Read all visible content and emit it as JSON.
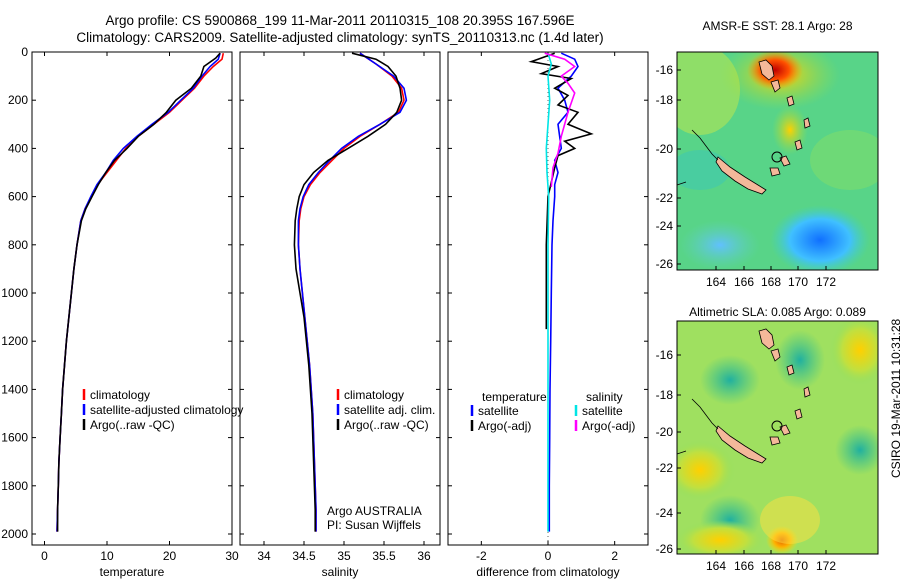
{
  "header": {
    "title_line1": "Argo profile: CS 5900868_199 11-Mar-2011 20110315_108 20.395S 167.596E",
    "title_line2": "Climatology: CARS2009. Satellite-adjusted climatology: synTS_20110313.nc (1.4d later)"
  },
  "footer": {
    "credit": "CSIRO 19-Mar-2011 10:31:28"
  },
  "colors": {
    "climatology": "#ff0000",
    "satellite": "#0000ff",
    "argo": "#000000",
    "sal_satellite": "#00e5e5",
    "sal_argo": "#ff00ff"
  },
  "chart_data": [
    {
      "type": "line",
      "xlabel": "temperature",
      "ylabel": "",
      "xlim": [
        -2,
        30
      ],
      "ylim": [
        2000,
        0
      ],
      "x_ticks": [
        "0",
        "10",
        "20",
        "30"
      ],
      "y_ticks": [
        "0",
        "200",
        "400",
        "600",
        "800",
        "1000",
        "1200",
        "1400",
        "1600",
        "1800",
        "2000"
      ],
      "legend": [
        "climatology",
        "satellite-adjusted climatology",
        "Argo(..raw -QC)"
      ],
      "series": [
        {
          "name": "climatology",
          "points": [
            [
              28.6,
              5
            ],
            [
              28.4,
              30
            ],
            [
              27.0,
              60
            ],
            [
              25.5,
              100
            ],
            [
              24.0,
              150
            ],
            [
              22.0,
              200
            ],
            [
              20.0,
              250
            ],
            [
              17.5,
              300
            ],
            [
              15.0,
              350
            ],
            [
              13.0,
              400
            ],
            [
              11.5,
              450
            ],
            [
              10.0,
              500
            ],
            [
              8.5,
              550
            ],
            [
              7.5,
              600
            ],
            [
              6.5,
              650
            ],
            [
              5.8,
              700
            ],
            [
              5.2,
              800
            ],
            [
              4.7,
              900
            ],
            [
              4.3,
              1000
            ],
            [
              3.9,
              1100
            ],
            [
              3.5,
              1200
            ],
            [
              3.2,
              1300
            ],
            [
              2.9,
              1400
            ],
            [
              2.7,
              1500
            ],
            [
              2.5,
              1600
            ],
            [
              2.3,
              1700
            ],
            [
              2.2,
              1800
            ],
            [
              2.1,
              1900
            ],
            [
              2.0,
              1990
            ]
          ]
        },
        {
          "name": "satellite-adjusted climatology",
          "points": [
            [
              28.1,
              5
            ],
            [
              27.8,
              30
            ],
            [
              26.5,
              60
            ],
            [
              25.2,
              100
            ],
            [
              23.8,
              150
            ],
            [
              21.8,
              200
            ],
            [
              19.8,
              250
            ],
            [
              17.2,
              300
            ],
            [
              14.8,
              350
            ],
            [
              12.6,
              400
            ],
            [
              11.0,
              450
            ],
            [
              9.8,
              500
            ],
            [
              8.4,
              550
            ],
            [
              7.4,
              600
            ],
            [
              6.5,
              650
            ],
            [
              5.8,
              700
            ],
            [
              5.2,
              800
            ],
            [
              4.7,
              900
            ],
            [
              4.3,
              1000
            ],
            [
              3.9,
              1100
            ],
            [
              3.5,
              1200
            ],
            [
              3.2,
              1300
            ],
            [
              2.9,
              1400
            ],
            [
              2.7,
              1500
            ],
            [
              2.5,
              1600
            ],
            [
              2.3,
              1700
            ],
            [
              2.2,
              1800
            ],
            [
              2.1,
              1900
            ],
            [
              2.0,
              1990
            ]
          ]
        },
        {
          "name": "Argo(..raw -QC)",
          "points": [
            [
              28.1,
              5
            ],
            [
              27.4,
              25
            ],
            [
              25.5,
              60
            ],
            [
              25.0,
              100
            ],
            [
              23.5,
              150
            ],
            [
              21.0,
              200
            ],
            [
              19.5,
              250
            ],
            [
              17.5,
              300
            ],
            [
              15.0,
              350
            ],
            [
              13.2,
              400
            ],
            [
              11.2,
              450
            ],
            [
              9.8,
              500
            ],
            [
              8.6,
              550
            ],
            [
              7.6,
              600
            ],
            [
              6.6,
              650
            ],
            [
              5.9,
              700
            ],
            [
              5.2,
              800
            ],
            [
              4.7,
              900
            ],
            [
              4.3,
              1000
            ],
            [
              3.9,
              1100
            ],
            [
              3.5,
              1200
            ],
            [
              3.2,
              1300
            ],
            [
              2.9,
              1400
            ],
            [
              2.7,
              1500
            ],
            [
              2.5,
              1600
            ],
            [
              2.3,
              1700
            ],
            [
              2.2,
              1800
            ],
            [
              2.1,
              1900
            ],
            [
              2.1,
              1990
            ]
          ]
        }
      ]
    },
    {
      "type": "line",
      "xlabel": "salinity",
      "ylabel": "",
      "xlim": [
        33.7,
        36.2
      ],
      "ylim": [
        2000,
        0
      ],
      "x_ticks": [
        "34",
        "34.5",
        "35",
        "35.5",
        "36"
      ],
      "legend": [
        "climatology",
        "satellite adj. clim.",
        "Argo(..raw -QC)"
      ],
      "annotation": [
        "Argo AUSTRALIA",
        "PI: Susan Wijffels"
      ],
      "series": [
        {
          "name": "climatology",
          "points": [
            [
              35.2,
              5
            ],
            [
              35.4,
              50
            ],
            [
              35.6,
              100
            ],
            [
              35.72,
              150
            ],
            [
              35.75,
              200
            ],
            [
              35.68,
              250
            ],
            [
              35.45,
              300
            ],
            [
              35.2,
              350
            ],
            [
              35.0,
              400
            ],
            [
              34.85,
              450
            ],
            [
              34.7,
              500
            ],
            [
              34.58,
              550
            ],
            [
              34.5,
              600
            ],
            [
              34.46,
              650
            ],
            [
              34.44,
              700
            ],
            [
              34.43,
              800
            ],
            [
              34.45,
              900
            ],
            [
              34.48,
              1000
            ],
            [
              34.51,
              1100
            ],
            [
              34.54,
              1200
            ],
            [
              34.57,
              1300
            ],
            [
              34.59,
              1400
            ],
            [
              34.61,
              1500
            ],
            [
              34.62,
              1600
            ],
            [
              34.63,
              1700
            ],
            [
              34.64,
              1800
            ],
            [
              34.65,
              1900
            ],
            [
              34.65,
              1990
            ]
          ]
        },
        {
          "name": "satellite adj. clim.",
          "points": [
            [
              35.2,
              5
            ],
            [
              35.4,
              50
            ],
            [
              35.62,
              100
            ],
            [
              35.75,
              150
            ],
            [
              35.78,
              200
            ],
            [
              35.7,
              250
            ],
            [
              35.45,
              300
            ],
            [
              35.18,
              350
            ],
            [
              34.97,
              400
            ],
            [
              34.82,
              450
            ],
            [
              34.68,
              500
            ],
            [
              34.56,
              550
            ],
            [
              34.49,
              600
            ],
            [
              34.45,
              650
            ],
            [
              34.43,
              700
            ],
            [
              34.43,
              800
            ],
            [
              34.45,
              900
            ],
            [
              34.48,
              1000
            ],
            [
              34.51,
              1100
            ],
            [
              34.54,
              1200
            ],
            [
              34.57,
              1300
            ],
            [
              34.59,
              1400
            ],
            [
              34.61,
              1500
            ],
            [
              34.62,
              1600
            ],
            [
              34.63,
              1700
            ],
            [
              34.64,
              1800
            ],
            [
              34.65,
              1900
            ],
            [
              34.65,
              1990
            ]
          ]
        },
        {
          "name": "Argo(..raw -QC)",
          "points": [
            [
              35.1,
              5
            ],
            [
              35.4,
              30
            ],
            [
              35.55,
              60
            ],
            [
              35.65,
              100
            ],
            [
              35.7,
              150
            ],
            [
              35.72,
              200
            ],
            [
              35.66,
              250
            ],
            [
              35.52,
              300
            ],
            [
              35.3,
              350
            ],
            [
              35.05,
              400
            ],
            [
              34.8,
              450
            ],
            [
              34.62,
              500
            ],
            [
              34.5,
              550
            ],
            [
              34.44,
              600
            ],
            [
              34.41,
              650
            ],
            [
              34.39,
              700
            ],
            [
              34.38,
              800
            ],
            [
              34.4,
              900
            ],
            [
              34.45,
              1000
            ],
            [
              34.5,
              1100
            ],
            [
              34.53,
              1200
            ],
            [
              34.56,
              1300
            ],
            [
              34.58,
              1400
            ],
            [
              34.6,
              1500
            ],
            [
              34.61,
              1600
            ],
            [
              34.62,
              1700
            ],
            [
              34.63,
              1800
            ],
            [
              34.64,
              1900
            ],
            [
              34.64,
              1990
            ]
          ]
        }
      ]
    },
    {
      "type": "line",
      "xlabel": "difference from climatology",
      "ylabel": "",
      "xlim": [
        -3,
        3
      ],
      "ylim": [
        2000,
        0
      ],
      "x_ticks": [
        "-2",
        "0",
        "2"
      ],
      "legend_groups": [
        {
          "title": "temperature",
          "items": [
            "satellite",
            "Argo(-adj)"
          ]
        },
        {
          "title": "salinity",
          "items": [
            "satellite",
            "Argo(-adj)"
          ]
        }
      ],
      "series": [
        {
          "name": "temperature satellite",
          "points": [
            [
              0.4,
              5
            ],
            [
              0.8,
              30
            ],
            [
              0.9,
              60
            ],
            [
              0.7,
              100
            ],
            [
              0.3,
              150
            ],
            [
              0.5,
              200
            ],
            [
              0.6,
              250
            ],
            [
              0.3,
              300
            ],
            [
              0.4,
              400
            ],
            [
              0.2,
              450
            ],
            [
              0.3,
              500
            ],
            [
              0.2,
              550
            ],
            [
              0.2,
              600
            ],
            [
              0.15,
              700
            ],
            [
              0.12,
              800
            ],
            [
              0.1,
              1000
            ],
            [
              0.08,
              1200
            ],
            [
              0.06,
              1400
            ],
            [
              0.05,
              1600
            ],
            [
              0.04,
              1800
            ],
            [
              0.04,
              1990
            ]
          ]
        },
        {
          "name": "temperature Argo(-adj)",
          "points": [
            [
              0.2,
              5
            ],
            [
              -0.3,
              30
            ],
            [
              -0.5,
              40
            ],
            [
              0.3,
              60
            ],
            [
              -0.2,
              90
            ],
            [
              0.7,
              110
            ],
            [
              0.2,
              150
            ],
            [
              0.6,
              180
            ],
            [
              0.3,
              220
            ],
            [
              0.9,
              250
            ],
            [
              0.6,
              300
            ],
            [
              1.3,
              340
            ],
            [
              0.5,
              370
            ],
            [
              0.8,
              400
            ],
            [
              0.3,
              430
            ],
            [
              0.2,
              480
            ],
            [
              0.0,
              600
            ],
            [
              -0.05,
              800
            ],
            [
              -0.05,
              1000
            ],
            [
              -0.05,
              1150
            ]
          ]
        },
        {
          "name": "salinity satellite",
          "points": [
            [
              0.0,
              5
            ],
            [
              0.1,
              50
            ],
            [
              0.0,
              100
            ],
            [
              0.05,
              200
            ],
            [
              0.0,
              300
            ],
            [
              -0.05,
              400
            ],
            [
              -0.03,
              500
            ],
            [
              0.02,
              600
            ],
            [
              0.0,
              800
            ],
            [
              0.0,
              1000
            ],
            [
              0.0,
              1200
            ],
            [
              0.0,
              1400
            ],
            [
              0.0,
              1600
            ],
            [
              0.0,
              1800
            ],
            [
              0.0,
              1990
            ]
          ]
        },
        {
          "name": "salinity Argo(-adj)",
          "points": [
            [
              -0.1,
              5
            ],
            [
              0.5,
              30
            ],
            [
              0.8,
              60
            ],
            [
              0.4,
              100
            ],
            [
              0.6,
              130
            ],
            [
              0.8,
              170
            ],
            [
              0.6,
              250
            ],
            [
              0.4,
              350
            ],
            [
              0.3,
              420
            ],
            [
              0.15,
              480
            ],
            [
              0.1,
              560
            ]
          ]
        }
      ]
    },
    {
      "type": "heatmap",
      "title": "AMSR-E SST: 28.1  Argo: 28",
      "x_ticks": [
        "164",
        "166",
        "168",
        "170",
        "172"
      ],
      "y_ticks": [
        "-16",
        "-18",
        "-20",
        "-22",
        "-24",
        "-26"
      ],
      "xlim": [
        162.5,
        173
      ],
      "ylim": [
        -26.5,
        -14.5
      ]
    },
    {
      "type": "heatmap",
      "title": "Altimetric SLA: 0.085  Argo: 0.089",
      "x_ticks": [
        "164",
        "166",
        "168",
        "170",
        "172"
      ],
      "y_ticks": [
        "-16",
        "-18",
        "-20",
        "-22",
        "-24",
        "-26"
      ],
      "xlim": [
        162.5,
        173
      ],
      "ylim": [
        -26.5,
        -14.5
      ]
    }
  ]
}
